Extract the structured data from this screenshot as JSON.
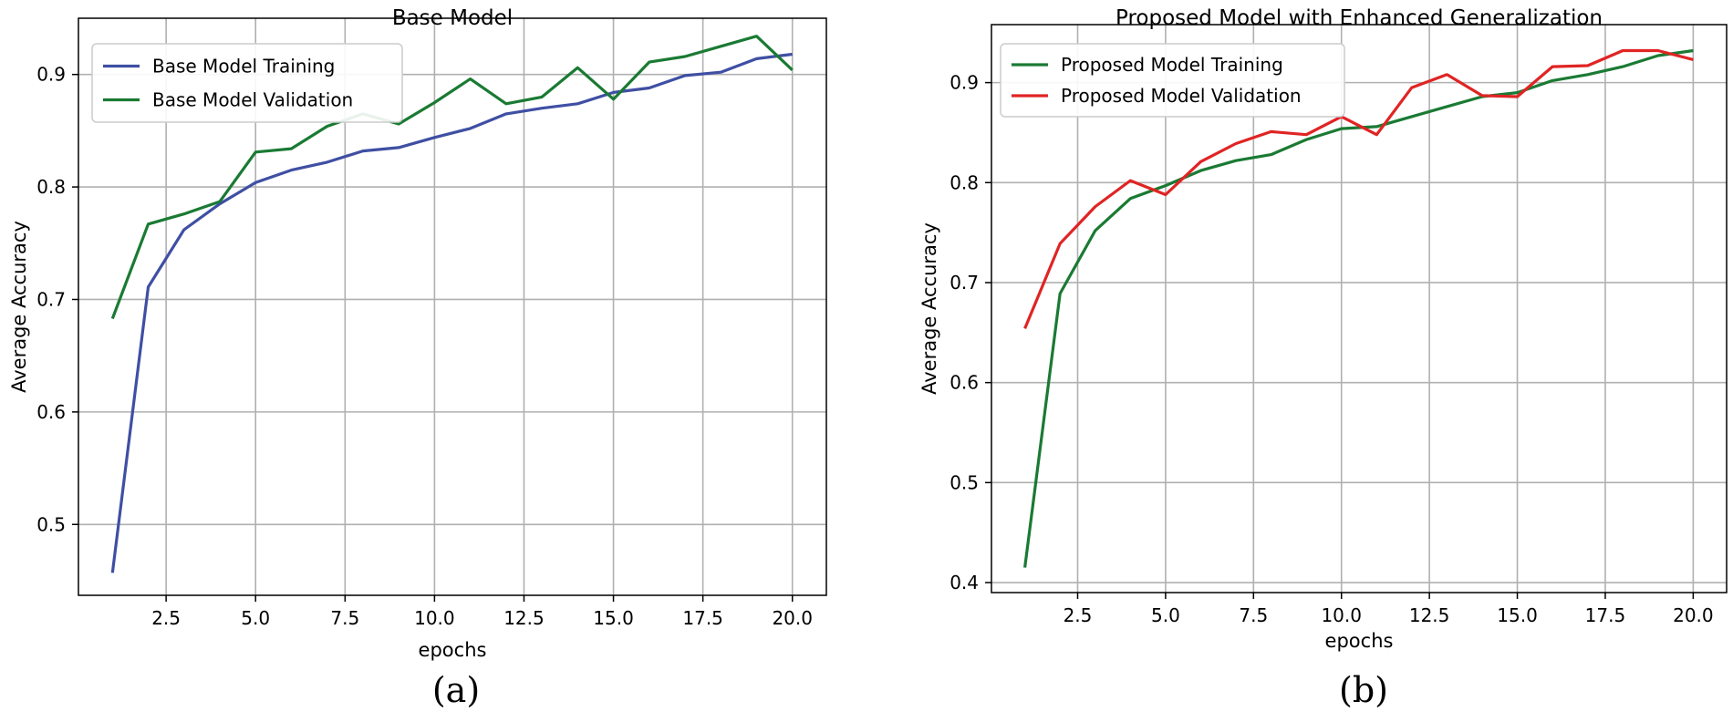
{
  "chart_data": [
    {
      "type": "line",
      "title": "Base Model",
      "xlabel": "epochs",
      "ylabel": "Average Accuracy",
      "caption": "(a)",
      "xlim": [
        0.05,
        20.95
      ],
      "ylim": [
        0.437,
        0.95
      ],
      "xticks": [
        2.5,
        5.0,
        7.5,
        10.0,
        12.5,
        15.0,
        17.5,
        20.0
      ],
      "xtick_labels": [
        "2.5",
        "5.0",
        "7.5",
        "10.0",
        "12.5",
        "15.0",
        "17.5",
        "20.0"
      ],
      "yticks": [
        0.5,
        0.6,
        0.7,
        0.8,
        0.9
      ],
      "ytick_labels": [
        "0.5",
        "0.6",
        "0.7",
        "0.8",
        "0.9"
      ],
      "grid": true,
      "legend_position": "top-left",
      "x": [
        1,
        2,
        3,
        4,
        5,
        6,
        7,
        8,
        9,
        10,
        11,
        12,
        13,
        14,
        15,
        16,
        17,
        18,
        19,
        20
      ],
      "series": [
        {
          "name": "Base Model  Training",
          "color": "#3f4fa3",
          "values": [
            0.457,
            0.711,
            0.762,
            0.785,
            0.804,
            0.815,
            0.822,
            0.832,
            0.835,
            0.844,
            0.852,
            0.865,
            0.87,
            0.874,
            0.884,
            0.888,
            0.899,
            0.902,
            0.914,
            0.918
          ]
        },
        {
          "name": "Base Model  Validation",
          "color": "#1a7a33",
          "values": [
            0.683,
            0.767,
            0.776,
            0.787,
            0.831,
            0.834,
            0.854,
            0.865,
            0.856,
            0.875,
            0.896,
            0.874,
            0.88,
            0.906,
            0.878,
            0.911,
            0.916,
            0.925,
            0.934,
            0.904
          ]
        }
      ]
    },
    {
      "type": "line",
      "title": "Proposed Model with Enhanced Generalization",
      "xlabel": "epochs",
      "ylabel": "Average Accuracy",
      "caption": "(b)",
      "xlim": [
        0.05,
        20.95
      ],
      "ylim": [
        0.39,
        0.958
      ],
      "xticks": [
        2.5,
        5.0,
        7.5,
        10.0,
        12.5,
        15.0,
        17.5,
        20.0
      ],
      "xtick_labels": [
        "2.5",
        "5.0",
        "7.5",
        "10.0",
        "12.5",
        "15.0",
        "17.5",
        "20.0"
      ],
      "yticks": [
        0.4,
        0.5,
        0.6,
        0.7,
        0.8,
        0.9
      ],
      "ytick_labels": [
        "0.4",
        "0.5",
        "0.6",
        "0.7",
        "0.8",
        "0.9"
      ],
      "grid": true,
      "legend_position": "top-left",
      "x": [
        1,
        2,
        3,
        4,
        5,
        6,
        7,
        8,
        9,
        10,
        11,
        12,
        13,
        14,
        15,
        16,
        17,
        18,
        19,
        20
      ],
      "series": [
        {
          "name": "Proposed Model Training",
          "color": "#1a7a33",
          "values": [
            0.415,
            0.689,
            0.752,
            0.784,
            0.797,
            0.812,
            0.822,
            0.828,
            0.843,
            0.854,
            0.856,
            0.866,
            0.876,
            0.886,
            0.89,
            0.902,
            0.908,
            0.916,
            0.927,
            0.932
          ]
        },
        {
          "name": "Proposed Model Validation",
          "color": "#e02424",
          "values": [
            0.654,
            0.739,
            0.776,
            0.802,
            0.788,
            0.821,
            0.839,
            0.851,
            0.848,
            0.866,
            0.848,
            0.895,
            0.908,
            0.887,
            0.886,
            0.916,
            0.917,
            0.932,
            0.932,
            0.923
          ]
        }
      ]
    }
  ]
}
